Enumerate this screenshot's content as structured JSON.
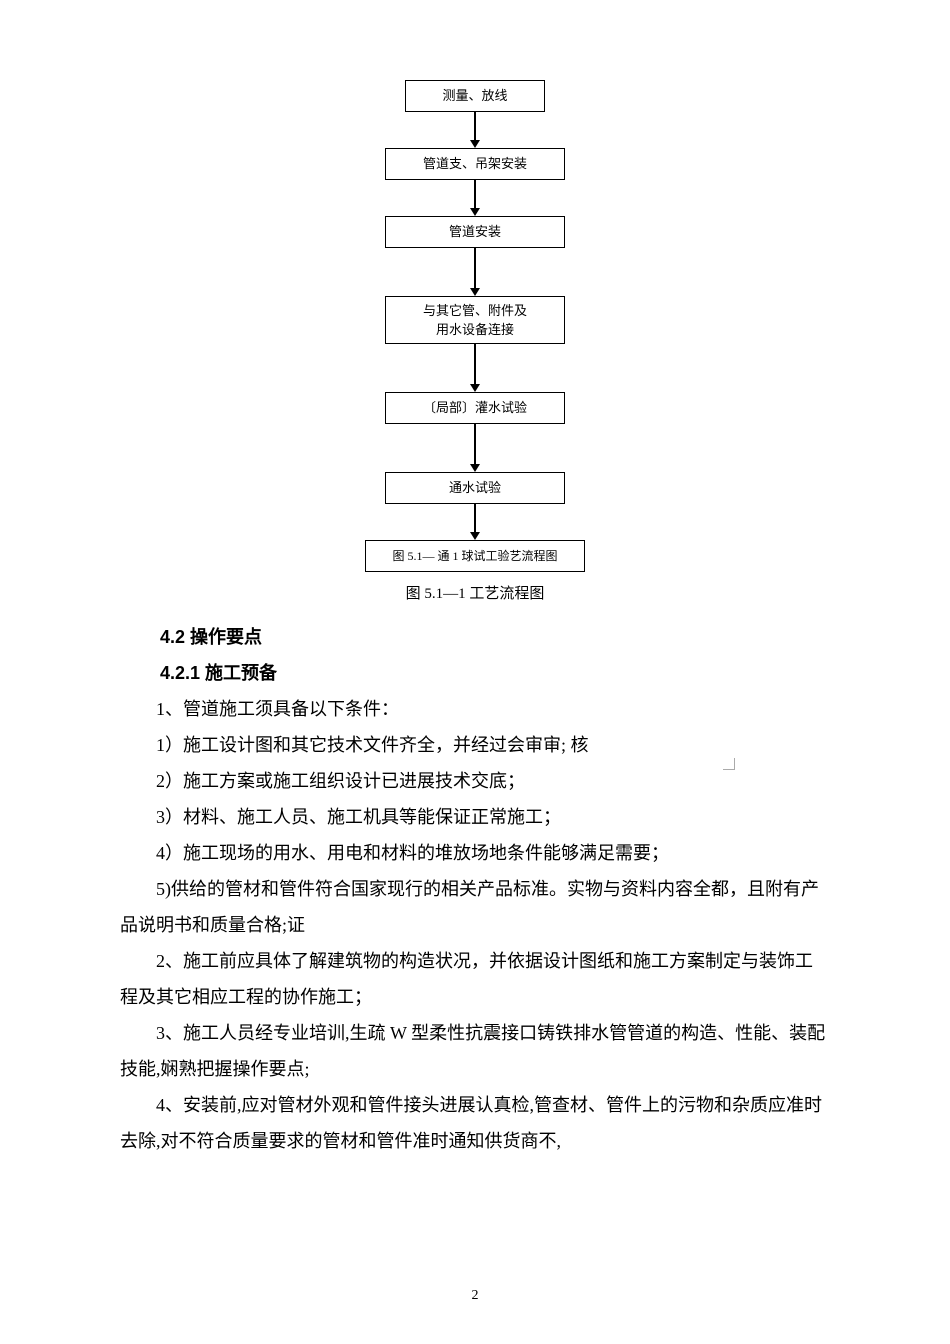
{
  "flowchart": {
    "nodes": [
      {
        "label": "测量、放线",
        "size": "small",
        "arrowAfterHeight": 28
      },
      {
        "label": "管道支、吊架安装",
        "size": "medium",
        "arrowAfterHeight": 28
      },
      {
        "label": "管道安装",
        "size": "medium",
        "arrowAfterHeight": 40
      },
      {
        "label": "与其它管、附件及\n用水设备连接",
        "size": "medium-tall",
        "arrowAfterHeight": 40
      },
      {
        "label": "〔局部〕灌水试验",
        "size": "medium",
        "arrowAfterHeight": 40
      },
      {
        "label": "通水试验",
        "size": "medium",
        "arrowAfterHeight": 28
      },
      {
        "label": "图 5.1— 通 1 球试工验艺流程图",
        "size": "final",
        "arrowAfterHeight": 0
      }
    ],
    "caption": "图 5.1—1 工艺流程图"
  },
  "sections": {
    "s42": "4.2 操作要点",
    "s421": "4.2.1 施工预备"
  },
  "paragraphs": {
    "p1": "1、管道施工须具备以下条件：",
    "p2": "1）施工设计图和其它技术文件齐全，并经过会审审;  核",
    "p3": "2）施工方案或施工组织设计已进展技术交底；",
    "p4": "3）材料、施工人员、施工机具等能保证正常施工；",
    "p5": "4）施工现场的用水、用电和材料的堆放场地条件能够满足需要；",
    "p6": "5)供给的管材和管件符合国家现行的相关产品标准。实物与资料内容全都，且附有产品说明书和质量合格;证",
    "p7": "2、施工前应具体了解建筑物的构造状况，并依据设计图纸和施工方案制定与装饰工程及其它相应工程的协作施工；",
    "p8": "3、施工人员经专业培训,生疏 W 型柔性抗震接口铸铁排水管管道的构造、性能、装配技能,娴熟把握操作要点;",
    "p9": "4、安装前,应对管材外观和管件接头进展认真检,管查材、管件上的污物和杂质应准时去除,对不符合质量要求的管材和管件准时通知供货商不,"
  },
  "pageNumber": "2"
}
